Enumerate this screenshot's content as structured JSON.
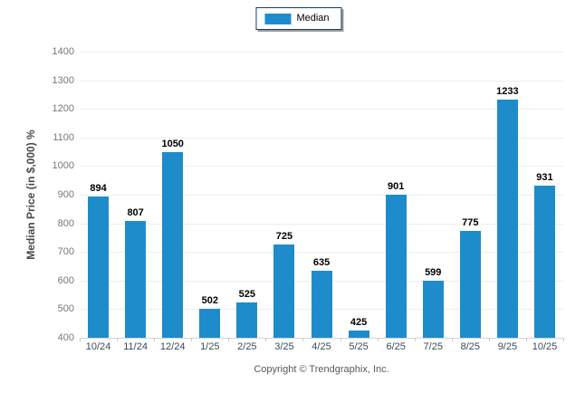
{
  "legend": {
    "label": "Median",
    "swatch_color": "#1e8ccb"
  },
  "footer": {
    "copyright": "Copyright © Trendgraphix, Inc."
  },
  "chart_data": {
    "type": "bar",
    "title": "",
    "categories": [
      "10/24",
      "11/24",
      "12/24",
      "1/25",
      "2/25",
      "3/25",
      "4/25",
      "5/25",
      "6/25",
      "7/25",
      "8/25",
      "9/25",
      "10/25"
    ],
    "series": [
      {
        "name": "Median",
        "values": [
          894,
          807,
          1050,
          502,
          525,
          725,
          635,
          425,
          901,
          599,
          775,
          1233,
          931
        ]
      }
    ],
    "xlabel": "",
    "ylabel": "Median Price (in $,000) %",
    "ylim": [
      400,
      1400
    ],
    "ytick_step": 100,
    "yticks": [
      400,
      500,
      600,
      700,
      800,
      900,
      1000,
      1100,
      1200,
      1300,
      1400
    ],
    "grid": "horizontal",
    "legend_position": "top-center",
    "bar_color": "#1e8ccb",
    "value_labels_shown": true
  }
}
